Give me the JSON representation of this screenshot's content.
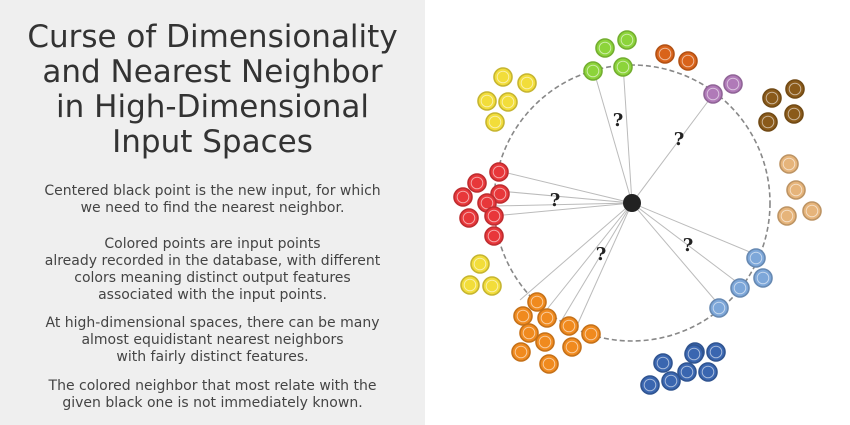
{
  "title_lines": [
    "Curse of Dimensionality",
    "and Nearest Neighbor",
    "in High-Dimensional",
    "Input Spaces"
  ],
  "paragraphs": [
    [
      "Centered black point is the new input, for which",
      "we need to find the nearest neighbor."
    ],
    [
      "Colored points are input points",
      "already recorded in the database, with different",
      "colors meaning distinct output features",
      "associated with the input points."
    ],
    [
      "At high-dimensional spaces, there can be many",
      "almost equidistant nearest neighbors",
      "with fairly distinct features."
    ],
    [
      "The colored neighbor that most relate with the",
      "given black one is not immediately known."
    ]
  ],
  "question_marks": [
    "?",
    "?",
    "?",
    "?",
    "?",
    "?"
  ],
  "colors": {
    "center": "#222222",
    "circle": "#888888",
    "lines": "#bbbbbb",
    "green": "#8cd43a",
    "purple": "#b07ab8",
    "brown": "#8a5a1a",
    "tan": "#e6b47a",
    "blue_light": "#7da7d9",
    "blue_dark": "#3a66b0",
    "orange": "#f08a1e",
    "yellow": "#f2dd3a",
    "red": "#e8373a",
    "dark_orange": "#d9631a"
  }
}
